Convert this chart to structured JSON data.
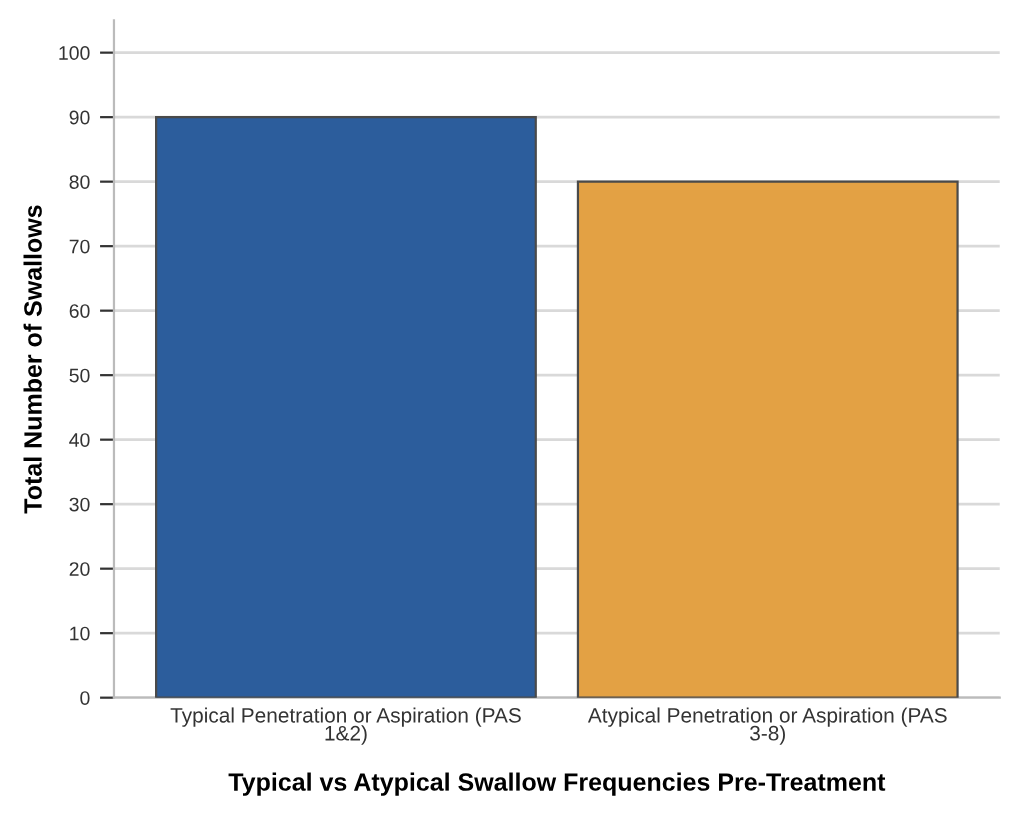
{
  "chart_data": {
    "type": "bar",
    "xlabel": "Typical vs Atypical Swallow Frequencies Pre-Treatment",
    "ylabel": "Total Number of Swallows",
    "categories": [
      "Typical Penetration or Aspiration (PAS 1&2)",
      "Atypical Penetration or Aspiration (PAS 3-8)"
    ],
    "values": [
      90,
      80
    ],
    "colors": [
      "#2c5d9c",
      "#e3a144"
    ],
    "ylim": [
      0,
      105
    ],
    "yticks": [
      0,
      10,
      20,
      30,
      40,
      50,
      60,
      70,
      80,
      90,
      100
    ],
    "grid": "y"
  }
}
